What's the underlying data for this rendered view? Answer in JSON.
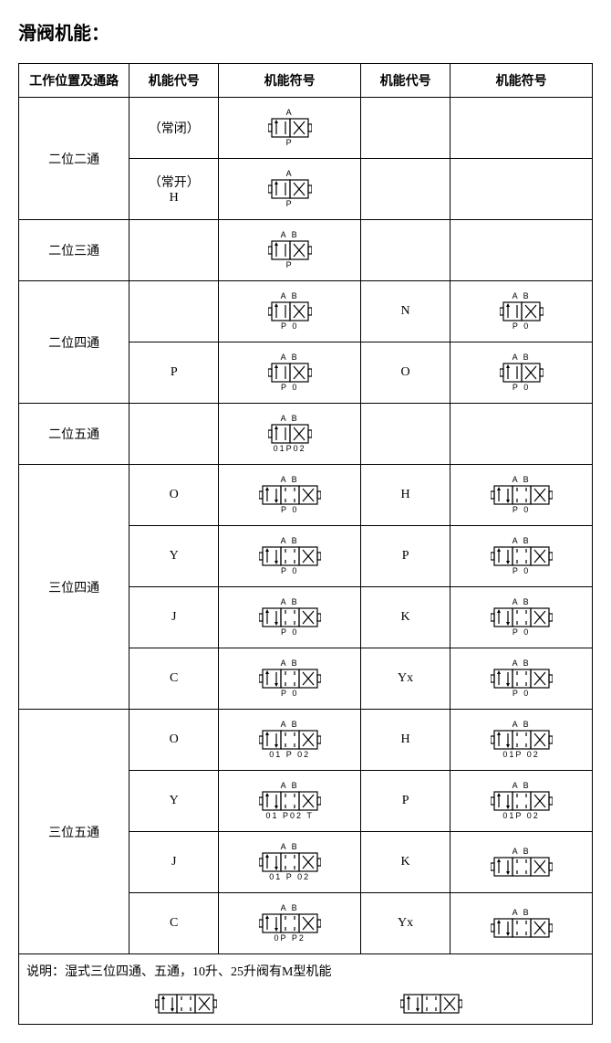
{
  "title": "滑阀机能：",
  "headers": [
    "工作位置及通路",
    "机能代号",
    "机能符号",
    "机能代号",
    "机能符号"
  ],
  "rows": [
    {
      "pos": "二位二通",
      "rowspan": 2,
      "code1": "（常闭）",
      "sym1": {
        "cells": 2,
        "top": "A",
        "bot": "P"
      },
      "code2": "",
      "sym2": null
    },
    {
      "code1": "（常开）\nH",
      "sym1": {
        "cells": 2,
        "top": "A",
        "bot": "P"
      },
      "code2": "",
      "sym2": null
    },
    {
      "pos": "二位三通",
      "rowspan": 1,
      "code1": "",
      "sym1": {
        "cells": 2,
        "top": "A B",
        "bot": "P"
      },
      "code2": "",
      "sym2": null
    },
    {
      "pos": "二位四通",
      "rowspan": 2,
      "code1": "",
      "sym1": {
        "cells": 2,
        "top": "A B",
        "bot": "P 0"
      },
      "code2": "N",
      "sym2": {
        "cells": 2,
        "top": "A B",
        "bot": "P 0"
      }
    },
    {
      "code1": "P",
      "sym1": {
        "cells": 2,
        "top": "A B",
        "bot": "P 0"
      },
      "code2": "O",
      "sym2": {
        "cells": 2,
        "top": "A B",
        "bot": "P 0"
      }
    },
    {
      "pos": "二位五通",
      "rowspan": 1,
      "code1": "",
      "sym1": {
        "cells": 2,
        "top": "A B",
        "bot": "01P02"
      },
      "code2": "",
      "sym2": null
    },
    {
      "pos": "三位四通",
      "rowspan": 4,
      "code1": "O",
      "sym1": {
        "cells": 3,
        "top": "A B",
        "bot": "P 0"
      },
      "code2": "H",
      "sym2": {
        "cells": 3,
        "top": "A B",
        "bot": "P 0"
      }
    },
    {
      "code1": "Y",
      "sym1": {
        "cells": 3,
        "top": "A B",
        "bot": "P 0"
      },
      "code2": "P",
      "sym2": {
        "cells": 3,
        "top": "A B",
        "bot": "P 0"
      }
    },
    {
      "code1": "J",
      "sym1": {
        "cells": 3,
        "top": "A B",
        "bot": "P 0"
      },
      "code2": "K",
      "sym2": {
        "cells": 3,
        "top": "A B",
        "bot": "P 0"
      }
    },
    {
      "code1": "C",
      "sym1": {
        "cells": 3,
        "top": "A B",
        "bot": "P 0"
      },
      "code2": "Yx",
      "sym2": {
        "cells": 3,
        "top": "A B",
        "bot": "P 0"
      }
    },
    {
      "pos": "三位五通",
      "rowspan": 4,
      "code1": "O",
      "sym1": {
        "cells": 3,
        "top": "A B",
        "bot": "01 P 02"
      },
      "code2": "H",
      "sym2": {
        "cells": 3,
        "top": "A B",
        "bot": "01P 02"
      }
    },
    {
      "code1": "Y",
      "sym1": {
        "cells": 3,
        "top": "A B",
        "bot": "01 P02",
        "extra": "T"
      },
      "code2": "P",
      "sym2": {
        "cells": 3,
        "top": "A B",
        "bot": "01P 02"
      }
    },
    {
      "code1": "J",
      "sym1": {
        "cells": 3,
        "top": "A B",
        "bot": "01 P 02"
      },
      "code2": "K",
      "sym2": {
        "cells": 3,
        "top": "A B",
        "bot": ""
      }
    },
    {
      "code1": "C",
      "sym1": {
        "cells": 3,
        "top": "A B",
        "bot": "0P P2"
      },
      "code2": "Yx",
      "sym2": {
        "cells": 3,
        "top": "A B",
        "bot": ""
      }
    }
  ],
  "note": "说明：湿式三位四通、五通，10升、25升阀有M型机能",
  "note_symbols": [
    {
      "cells": 3
    },
    {
      "cells": 3
    }
  ],
  "styling": {
    "border_color": "#000000",
    "border_width": 1.5,
    "background": "#ffffff",
    "text_color": "#000000",
    "title_fontsize": 20,
    "cell_fontsize": 14,
    "port_fontsize": 9,
    "symbol_stroke": "#000000",
    "symbol_stroke_width": 1.2,
    "cell_box_w": 20,
    "cell_box_h": 20
  }
}
